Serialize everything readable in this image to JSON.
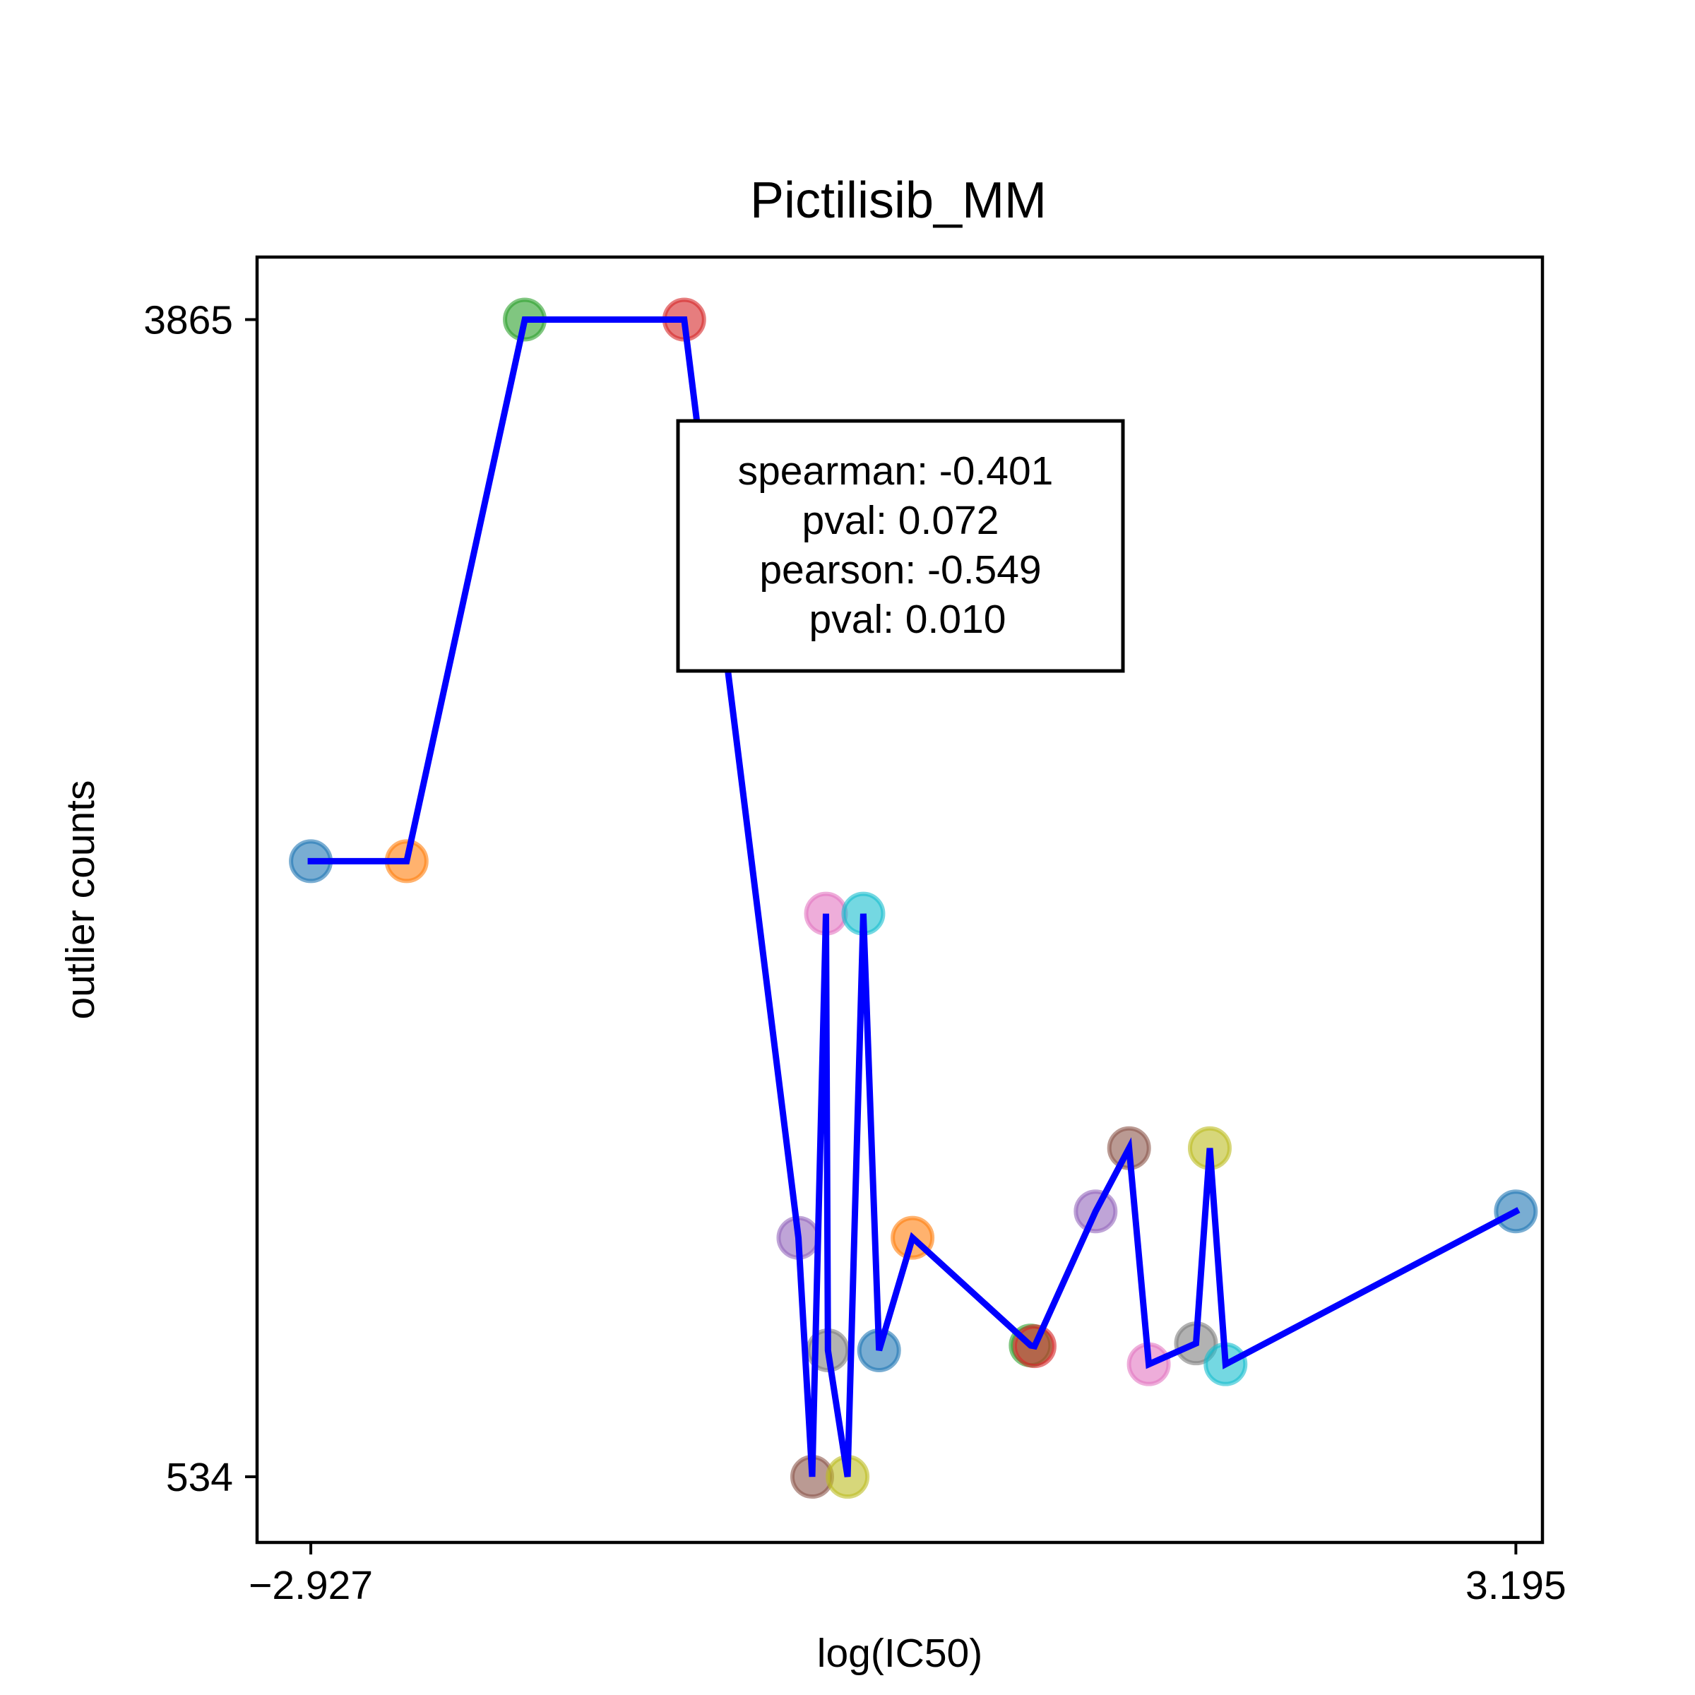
{
  "chart_data": {
    "type": "scatter",
    "title": "Pictilisib_MM",
    "xlabel": "log(IC50)",
    "ylabel": "outlier counts",
    "xlim": [
      -3.2,
      3.33
    ],
    "ylim": [
      345,
      4045
    ],
    "xticks": [
      {
        "value": -2.927,
        "label": "−2.927"
      },
      {
        "value": 3.195,
        "label": "3.195"
      }
    ],
    "yticks": [
      {
        "value": 3865,
        "label": "3865"
      },
      {
        "value": 534,
        "label": "534"
      }
    ],
    "grid": false,
    "line_color": "#0000ff",
    "points": [
      {
        "x": -2.927,
        "y": 2306,
        "color": "#1f77b4"
      },
      {
        "x": -2.44,
        "y": 2306,
        "color": "#ff7f0e"
      },
      {
        "x": -1.84,
        "y": 3865,
        "color": "#2ca02c"
      },
      {
        "x": -1.03,
        "y": 3865,
        "color": "#d62728"
      },
      {
        "x": -0.45,
        "y": 1222,
        "color": "#9467bd"
      },
      {
        "x": -0.38,
        "y": 534,
        "color": "#8c564b"
      },
      {
        "x": -0.31,
        "y": 2155,
        "color": "#e377c2"
      },
      {
        "x": -0.3,
        "y": 898,
        "color": "#7f7f7f"
      },
      {
        "x": -0.2,
        "y": 534,
        "color": "#bcbd22"
      },
      {
        "x": -0.12,
        "y": 2155,
        "color": "#17becf"
      },
      {
        "x": -0.04,
        "y": 898,
        "color": "#1f77b4"
      },
      {
        "x": 0.13,
        "y": 1222,
        "color": "#ff7f0e"
      },
      {
        "x": 0.73,
        "y": 912,
        "color": "#2ca02c"
      },
      {
        "x": 0.75,
        "y": 910,
        "color": "#d62728"
      },
      {
        "x": 1.06,
        "y": 1298,
        "color": "#9467bd"
      },
      {
        "x": 1.23,
        "y": 1480,
        "color": "#8c564b"
      },
      {
        "x": 1.33,
        "y": 858,
        "color": "#e377c2"
      },
      {
        "x": 1.57,
        "y": 918,
        "color": "#7f7f7f"
      },
      {
        "x": 1.64,
        "y": 1480,
        "color": "#bcbd22"
      },
      {
        "x": 1.72,
        "y": 858,
        "color": "#17becf"
      },
      {
        "x": 3.195,
        "y": 1298,
        "color": "#1f77b4"
      }
    ],
    "stats": {
      "line1": "spearman: -0.401",
      "line2": "pval: 0.072",
      "line3": "pearson: -0.549",
      "line4": "pval: 0.010"
    }
  }
}
